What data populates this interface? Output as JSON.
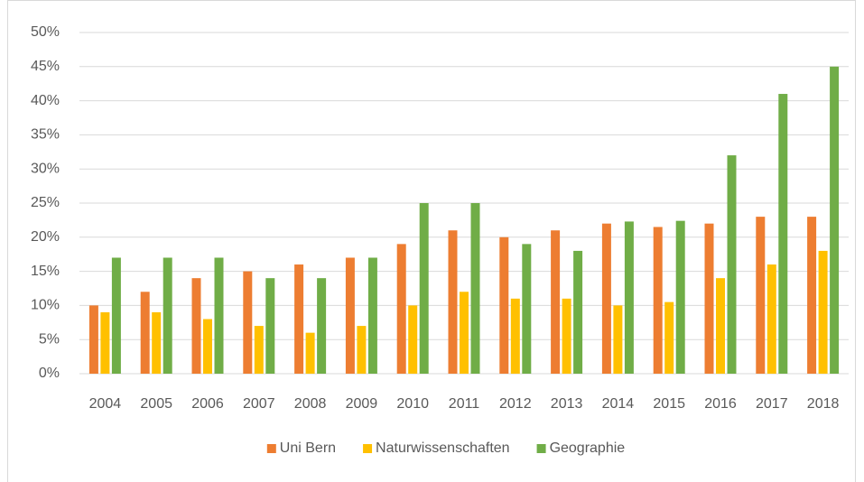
{
  "chart_data": {
    "type": "bar",
    "categories": [
      "2004",
      "2005",
      "2006",
      "2007",
      "2008",
      "2009",
      "2010",
      "2011",
      "2012",
      "2013",
      "2014",
      "2015",
      "2016",
      "2017",
      "2018"
    ],
    "series": [
      {
        "name": "Uni Bern",
        "color": "#ed7d31",
        "values": [
          10,
          12,
          14,
          15,
          16,
          17,
          19,
          21,
          20,
          21,
          22,
          21.5,
          22,
          23,
          23
        ]
      },
      {
        "name": "Naturwissenschaften",
        "color": "#ffc000",
        "values": [
          9,
          9,
          8,
          7,
          6,
          7,
          10,
          12,
          11,
          11,
          10,
          10.5,
          14,
          16,
          18
        ]
      },
      {
        "name": "Geographie",
        "color": "#70ad47",
        "values": [
          17,
          17,
          17,
          14,
          14,
          17,
          25,
          25,
          19,
          18,
          22.3,
          22.4,
          32,
          41,
          45
        ]
      }
    ],
    "ylim": [
      0,
      50
    ],
    "yticks": [
      {
        "value": 0,
        "label": "0%"
      },
      {
        "value": 5,
        "label": "5%"
      },
      {
        "value": 10,
        "label": "10%"
      },
      {
        "value": 15,
        "label": "15%"
      },
      {
        "value": 20,
        "label": "20%"
      },
      {
        "value": 25,
        "label": "25%"
      },
      {
        "value": 30,
        "label": "30%"
      },
      {
        "value": 35,
        "label": "35%"
      },
      {
        "value": 40,
        "label": "40%"
      },
      {
        "value": 45,
        "label": "45%"
      },
      {
        "value": 50,
        "label": "50%"
      }
    ],
    "grid": true,
    "legend": "bottom"
  }
}
